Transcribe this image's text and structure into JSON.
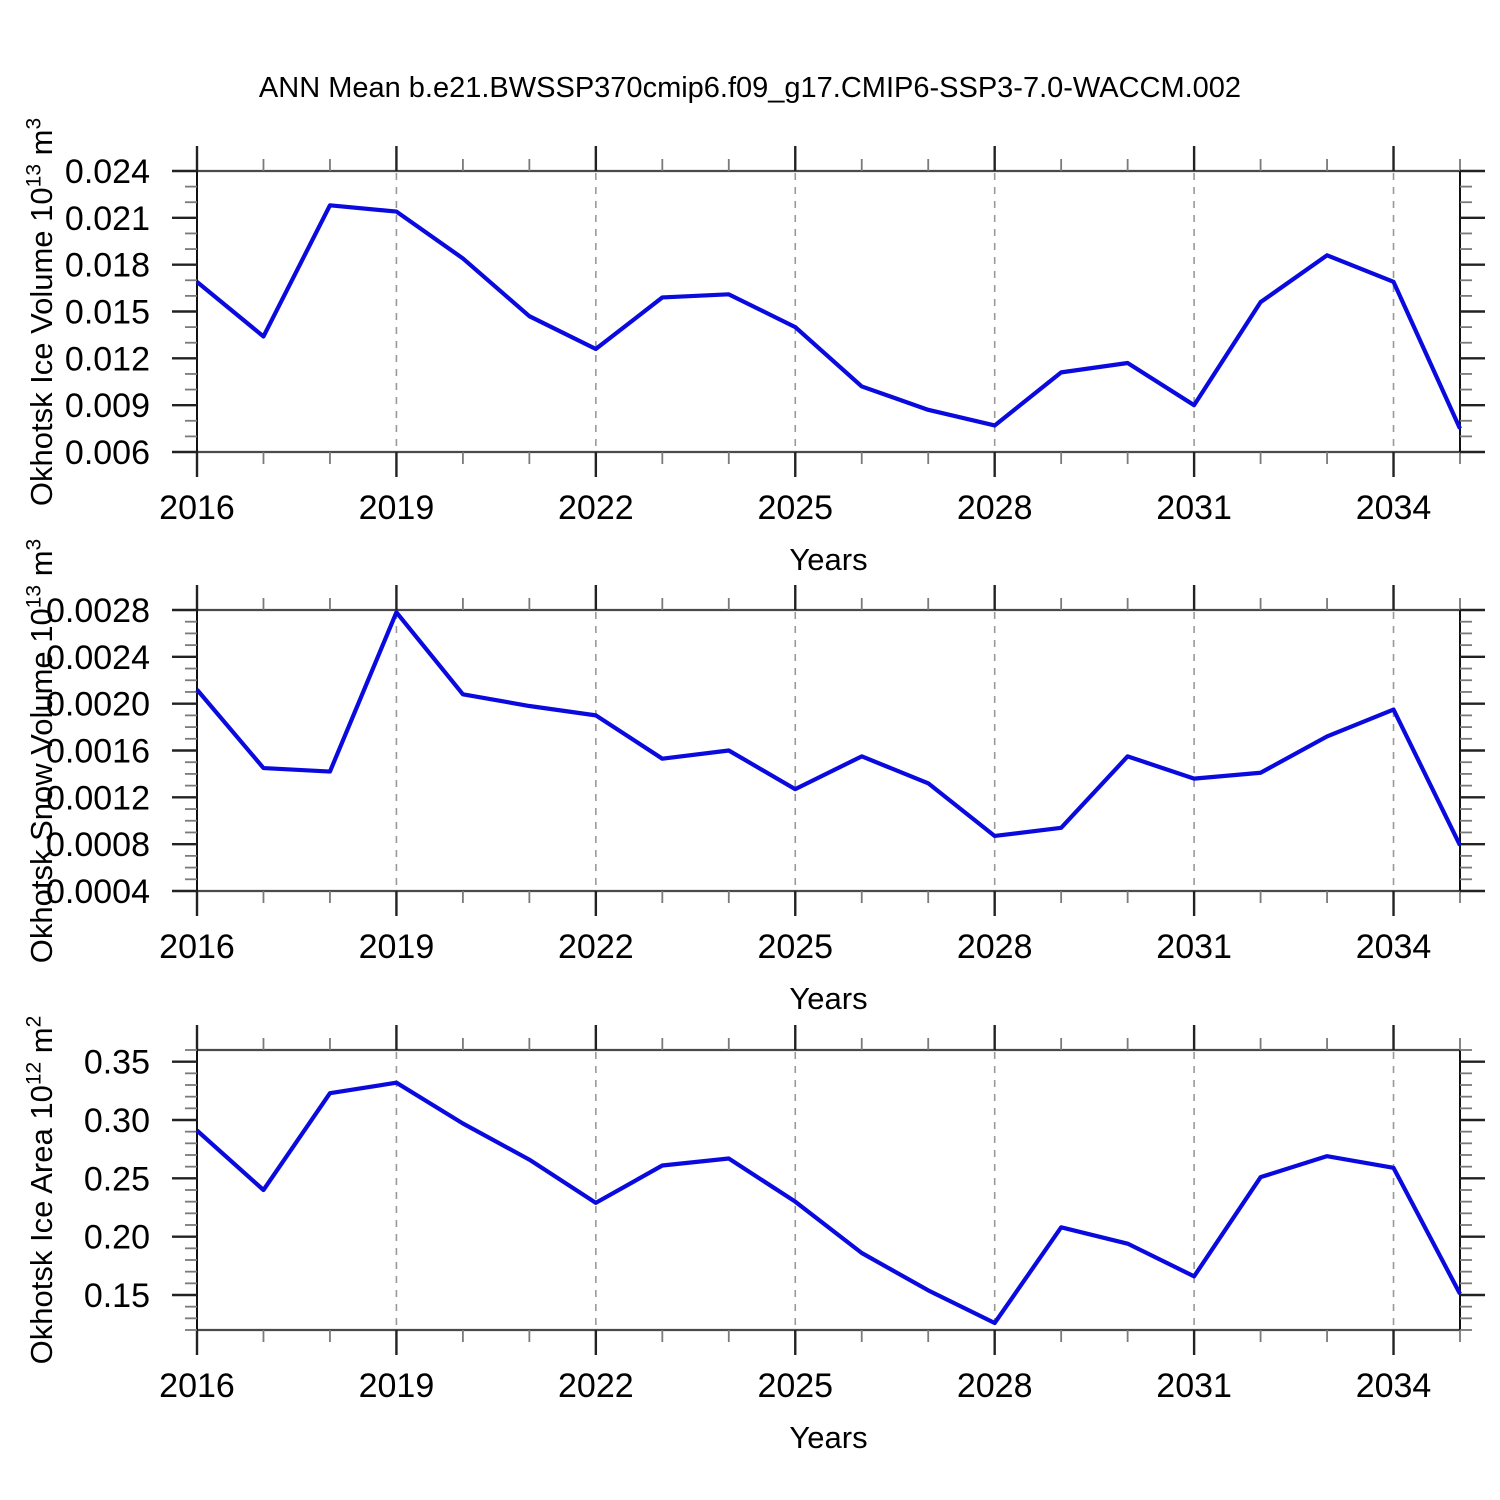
{
  "title": "ANN Mean b.e21.BWSSP370cmip6.f09_g17.CMIP6-SSP3-7.0-WACCM.002",
  "styles": {
    "line_color": "#0a0adf",
    "frame_side_color": "#111111",
    "frame_topbot_color": "#4a4a4a",
    "major_tick_color": "#222222",
    "minor_tick_color": "#7a7a7a",
    "grid_color": "#999999",
    "text_color": "#000000"
  },
  "chart_data": [
    {
      "type": "line",
      "ylabel_prefix": "Okhotsk Ice Volume 10",
      "ylabel_exponent": "13",
      "ylabel_unit": " m",
      "ylabel_unit_exponent": "3",
      "xlabel": "Years",
      "x": [
        2016,
        2017,
        2018,
        2019,
        2020,
        2021,
        2022,
        2023,
        2024,
        2025,
        2026,
        2027,
        2028,
        2029,
        2030,
        2031,
        2032,
        2033,
        2034,
        2035
      ],
      "values": [
        0.0169,
        0.0134,
        0.0218,
        0.0214,
        0.0184,
        0.0147,
        0.0126,
        0.0159,
        0.0161,
        0.014,
        0.0102,
        0.0087,
        0.0077,
        0.0111,
        0.0117,
        0.009,
        0.0156,
        0.0186,
        0.0169,
        0.0075
      ],
      "xlim": [
        2016,
        2035
      ],
      "ylim": [
        0.006,
        0.024
      ],
      "yticks": [
        0.006,
        0.009,
        0.012,
        0.015,
        0.018,
        0.021,
        0.024
      ],
      "ytick_labels": [
        "0.006",
        "0.009",
        "0.012",
        "0.015",
        "0.018",
        "0.021",
        "0.024"
      ],
      "yminor_step": 0.001,
      "xticks_major": [
        2016,
        2019,
        2022,
        2025,
        2028,
        2031,
        2034
      ],
      "xtick_labels": [
        "2016",
        "2019",
        "2022",
        "2025",
        "2028",
        "2031",
        "2034"
      ],
      "xminor_step": 1,
      "gridline_years": [
        2019,
        2022,
        2025,
        2028,
        2031,
        2034
      ]
    },
    {
      "type": "line",
      "ylabel_prefix": "Okhotsk Snow Volume 10",
      "ylabel_exponent": "13",
      "ylabel_unit": " m",
      "ylabel_unit_exponent": "3",
      "xlabel": "Years",
      "x": [
        2016,
        2017,
        2018,
        2019,
        2020,
        2021,
        2022,
        2023,
        2024,
        2025,
        2026,
        2027,
        2028,
        2029,
        2030,
        2031,
        2032,
        2033,
        2034,
        2035
      ],
      "values": [
        0.00212,
        0.00145,
        0.00142,
        0.00278,
        0.00208,
        0.00198,
        0.0019,
        0.00153,
        0.0016,
        0.00127,
        0.00155,
        0.00132,
        0.00087,
        0.00094,
        0.00155,
        0.00136,
        0.00141,
        0.00172,
        0.00195,
        0.00079
      ],
      "xlim": [
        2016,
        2035
      ],
      "ylim": [
        0.0004,
        0.0028
      ],
      "yticks": [
        0.0004,
        0.0008,
        0.0012,
        0.0016,
        0.002,
        0.0024,
        0.0028
      ],
      "ytick_labels": [
        "0.0004",
        "0.0008",
        "0.0012",
        "0.0016",
        "0.0020",
        "0.0024",
        "0.0028"
      ],
      "yminor_step": 0.0001,
      "xticks_major": [
        2016,
        2019,
        2022,
        2025,
        2028,
        2031,
        2034
      ],
      "xtick_labels": [
        "2016",
        "2019",
        "2022",
        "2025",
        "2028",
        "2031",
        "2034"
      ],
      "xminor_step": 1,
      "gridline_years": [
        2019,
        2022,
        2025,
        2028,
        2031,
        2034
      ]
    },
    {
      "type": "line",
      "ylabel_prefix": "Okhotsk Ice Area 10",
      "ylabel_exponent": "12",
      "ylabel_unit": " m",
      "ylabel_unit_exponent": "2",
      "xlabel": "Years",
      "x": [
        2016,
        2017,
        2018,
        2019,
        2020,
        2021,
        2022,
        2023,
        2024,
        2025,
        2026,
        2027,
        2028,
        2029,
        2030,
        2031,
        2032,
        2033,
        2034,
        2035
      ],
      "values": [
        0.291,
        0.24,
        0.323,
        0.332,
        0.297,
        0.266,
        0.229,
        0.261,
        0.267,
        0.23,
        0.186,
        0.154,
        0.126,
        0.208,
        0.194,
        0.166,
        0.251,
        0.269,
        0.259,
        0.151
      ],
      "xlim": [
        2016,
        2035
      ],
      "ylim": [
        0.12,
        0.36
      ],
      "yticks": [
        0.15,
        0.2,
        0.25,
        0.3,
        0.35
      ],
      "ytick_labels": [
        "0.15",
        "0.20",
        "0.25",
        "0.30",
        "0.35"
      ],
      "yminor_step": 0.01,
      "xticks_major": [
        2016,
        2019,
        2022,
        2025,
        2028,
        2031,
        2034
      ],
      "xtick_labels": [
        "2016",
        "2019",
        "2022",
        "2025",
        "2028",
        "2031",
        "2034"
      ],
      "xminor_step": 1,
      "gridline_years": [
        2019,
        2022,
        2025,
        2028,
        2031,
        2034
      ]
    }
  ]
}
